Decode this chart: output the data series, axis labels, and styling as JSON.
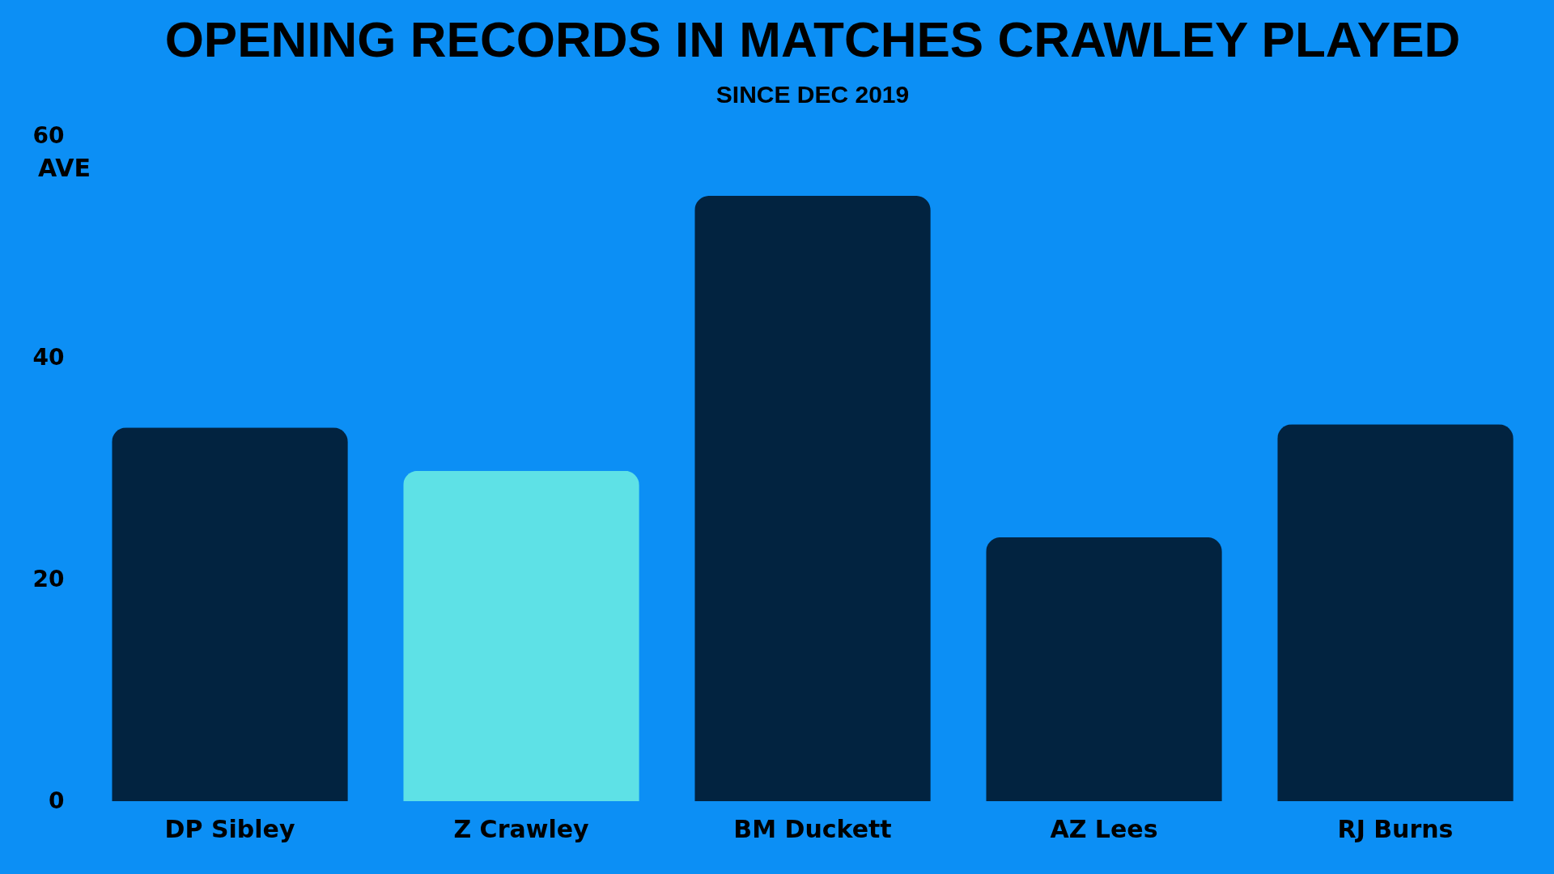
{
  "chart_data": {
    "type": "bar",
    "title": "OPENING RECORDS IN MATCHES CRAWLEY PLAYED",
    "subtitle": "SINCE DEC 2019",
    "ylabel": "AVE",
    "categories": [
      "DP Sibley",
      "Z Crawley",
      "BM Duckett",
      "AZ Lees",
      "RJ Burns"
    ],
    "values": [
      33.7,
      29.8,
      54.6,
      23.8,
      34.0
    ],
    "colors": [
      "#022340",
      "#5ee1e6",
      "#022340",
      "#022340",
      "#022340"
    ],
    "ylim": [
      0,
      60
    ],
    "yticks": [
      0,
      20,
      40,
      60
    ],
    "grid": false
  }
}
